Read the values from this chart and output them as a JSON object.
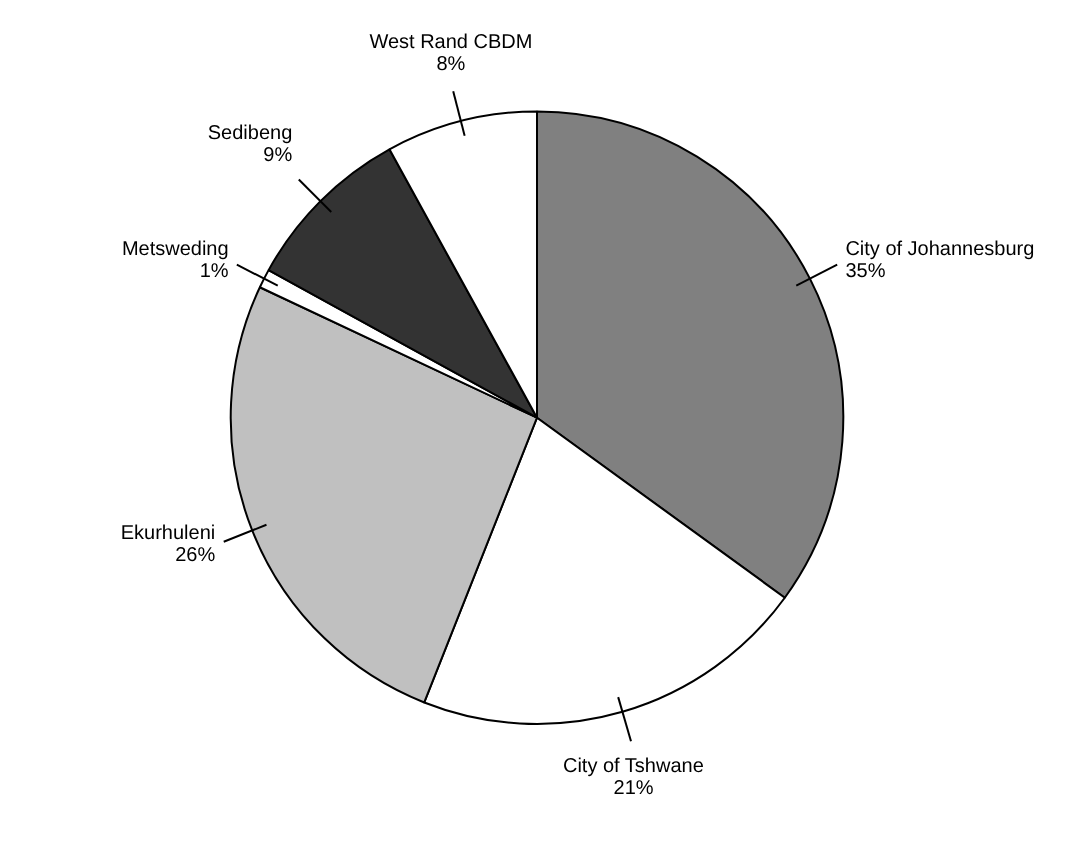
{
  "chart_data": {
    "type": "pie",
    "categories": [
      "City of Johannesburg",
      "City of Tshwane",
      "Ekurhuleni",
      "Metsweding",
      "Sedibeng",
      "West Rand CBDM"
    ],
    "values": [
      35,
      21,
      26,
      1,
      9,
      8
    ],
    "value_labels": [
      "35%",
      "21%",
      "26%",
      "1%",
      "9%",
      "8%"
    ],
    "colors": [
      "#808080",
      "#ffffff",
      "#c0c0c0",
      "#ffffff",
      "#333333",
      "#ffffff"
    ]
  }
}
